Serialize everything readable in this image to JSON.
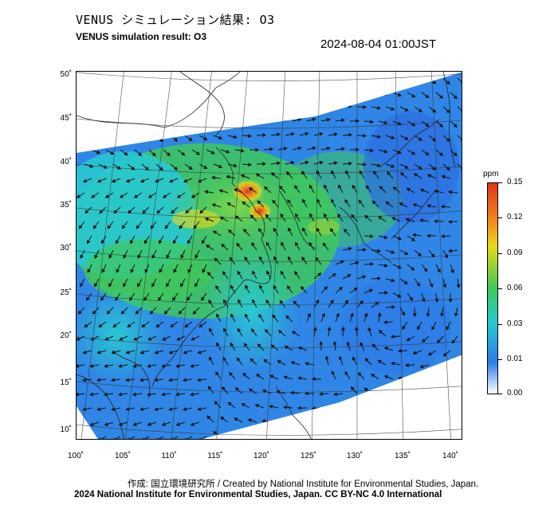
{
  "header": {
    "title_jp": "VENUS シミュレーション結果: O3",
    "title_en": "VENUS simulation result: O3",
    "timestamp": "2024-08-04 01:00JST"
  },
  "map": {
    "lat_labels": [
      "50˚",
      "45˚",
      "40˚",
      "35˚",
      "30˚",
      "25˚",
      "20˚",
      "15˚",
      "10˚"
    ],
    "lon_labels": [
      "100˚",
      "105˚",
      "110˚",
      "115˚",
      "120˚",
      "125˚",
      "130˚",
      "135˚",
      "140˚"
    ],
    "field": "O3 concentration with wind vectors"
  },
  "colorbar": {
    "unit": "ppm",
    "labels": [
      "0.15",
      "0.12",
      "0.09",
      "0.06",
      "0.03",
      "0.01",
      "0.00"
    ],
    "colors": [
      "#e0351a",
      "#f08a1e",
      "#e8d81a",
      "#3ec85a",
      "#28c8d2",
      "#2c7ae6",
      "#ffffff"
    ]
  },
  "footer": {
    "credit_line1": "作成: 国立環境研究所 / Created by National Institute for Environmental Studies, Japan.",
    "credit_line2": "2024 National Institute for Environmental Studies, Japan. CC BY-NC 4.0 International"
  }
}
